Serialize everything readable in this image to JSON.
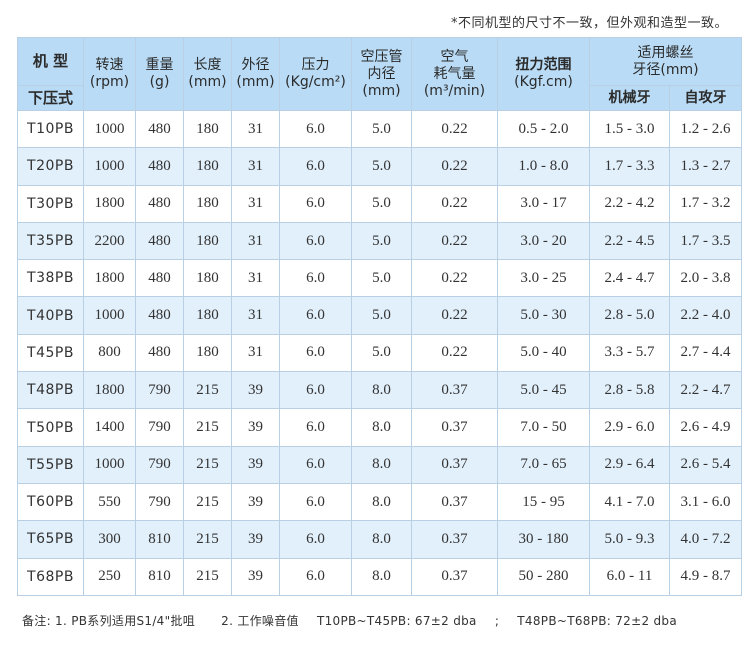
{
  "top_note": "*不同机型的尺寸不一致，但外观和造型一致。",
  "header": {
    "model_top": "机 型",
    "model_bottom": "下压式",
    "speed": [
      "转速",
      "(rpm)"
    ],
    "weight": [
      "重量",
      "(g)"
    ],
    "length": [
      "长度",
      "(mm)"
    ],
    "diameter": [
      "外径",
      "(mm)"
    ],
    "pressure": [
      "压力",
      "(Kg/cm²)"
    ],
    "hose": [
      "空压管",
      "内径",
      "(mm)"
    ],
    "air": [
      "空气",
      "耗气量",
      "(m³/min)"
    ],
    "torque": "扭力范围",
    "torque_unit": "(Kgf.cm)",
    "screw": [
      "适用螺丝",
      "牙径(mm)"
    ],
    "machine_thread": "机械牙",
    "self_tapping": "自攻牙"
  },
  "rows": [
    [
      "T10PB",
      "1000",
      "480",
      "180",
      "31",
      "6.0",
      "5.0",
      "0.22",
      "0.5 - 2.0",
      "1.5 - 3.0",
      "1.2 - 2.6"
    ],
    [
      "T20PB",
      "1000",
      "480",
      "180",
      "31",
      "6.0",
      "5.0",
      "0.22",
      "1.0 - 8.0",
      "1.7 - 3.3",
      "1.3 - 2.7"
    ],
    [
      "T30PB",
      "1800",
      "480",
      "180",
      "31",
      "6.0",
      "5.0",
      "0.22",
      "3.0 - 17",
      "2.2 - 4.2",
      "1.7 - 3.2"
    ],
    [
      "T35PB",
      "2200",
      "480",
      "180",
      "31",
      "6.0",
      "5.0",
      "0.22",
      "3.0 - 20",
      "2.2 - 4.5",
      "1.7 - 3.5"
    ],
    [
      "T38PB",
      "1800",
      "480",
      "180",
      "31",
      "6.0",
      "5.0",
      "0.22",
      "3.0 - 25",
      "2.4 - 4.7",
      "2.0 - 3.8"
    ],
    [
      "T40PB",
      "1000",
      "480",
      "180",
      "31",
      "6.0",
      "5.0",
      "0.22",
      "5.0 - 30",
      "2.8 - 5.0",
      "2.2 - 4.0"
    ],
    [
      "T45PB",
      "800",
      "480",
      "180",
      "31",
      "6.0",
      "5.0",
      "0.22",
      "5.0 - 40",
      "3.3 - 5.7",
      "2.7 - 4.4"
    ],
    [
      "T48PB",
      "1800",
      "790",
      "215",
      "39",
      "6.0",
      "8.0",
      "0.37",
      "5.0 - 45",
      "2.8 - 5.8",
      "2.2 - 4.7"
    ],
    [
      "T50PB",
      "1400",
      "790",
      "215",
      "39",
      "6.0",
      "8.0",
      "0.37",
      "7.0 - 50",
      "2.9 - 6.0",
      "2.6 - 4.9"
    ],
    [
      "T55PB",
      "1000",
      "790",
      "215",
      "39",
      "6.0",
      "8.0",
      "0.37",
      "7.0 - 65",
      "2.9 - 6.4",
      "2.6 - 5.4"
    ],
    [
      "T60PB",
      "550",
      "790",
      "215",
      "39",
      "6.0",
      "8.0",
      "0.37",
      "15 - 95",
      "4.1 - 7.0",
      "3.1 - 6.0"
    ],
    [
      "T65PB",
      "300",
      "810",
      "215",
      "39",
      "6.0",
      "8.0",
      "0.37",
      "30 - 180",
      "5.0 - 9.3",
      "4.0 - 7.2"
    ],
    [
      "T68PB",
      "250",
      "810",
      "215",
      "39",
      "6.0",
      "8.0",
      "0.37",
      "50 - 280",
      "6.0 - 11",
      "4.9 - 8.7"
    ]
  ],
  "footnote": {
    "note1": "备注: 1. PB系列适用S1/4\"批咀",
    "note2": "2. 工作噪音值",
    "noise1": "T10PB~T45PB: 67±2 dba",
    "sep": ";",
    "noise2": "T48PB~T68PB: 72±2 dba"
  }
}
